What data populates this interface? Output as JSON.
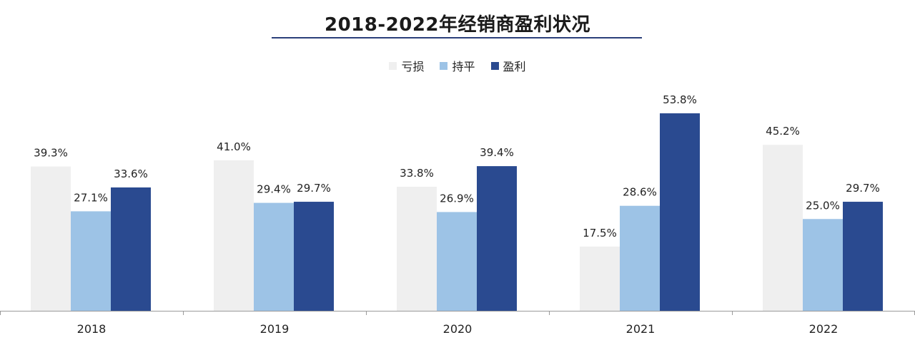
{
  "chart_data": {
    "type": "bar",
    "title": "2018-2022年经销商盈利状况",
    "categories": [
      "2018",
      "2019",
      "2020",
      "2021",
      "2022"
    ],
    "series": [
      {
        "name": "亏损",
        "color": "#efefef",
        "values": [
          39.3,
          41.0,
          33.8,
          17.5,
          45.2
        ],
        "labels": [
          "39.3%",
          "41.0%",
          "33.8%",
          "17.5%",
          "45.2%"
        ]
      },
      {
        "name": "持平",
        "color": "#9dc3e6",
        "values": [
          27.1,
          29.4,
          26.9,
          28.6,
          25.0
        ],
        "labels": [
          "27.1%",
          "29.4%",
          "26.9%",
          "28.6%",
          "25.0%"
        ]
      },
      {
        "name": "盈利",
        "color": "#2a4a90",
        "values": [
          33.6,
          29.7,
          39.4,
          53.8,
          29.7
        ],
        "labels": [
          "33.6%",
          "29.7%",
          "39.4%",
          "53.8%",
          "29.7%"
        ]
      }
    ],
    "ylim": [
      0,
      60
    ],
    "grid": false,
    "legend_position": "top-center",
    "unit": "%"
  }
}
